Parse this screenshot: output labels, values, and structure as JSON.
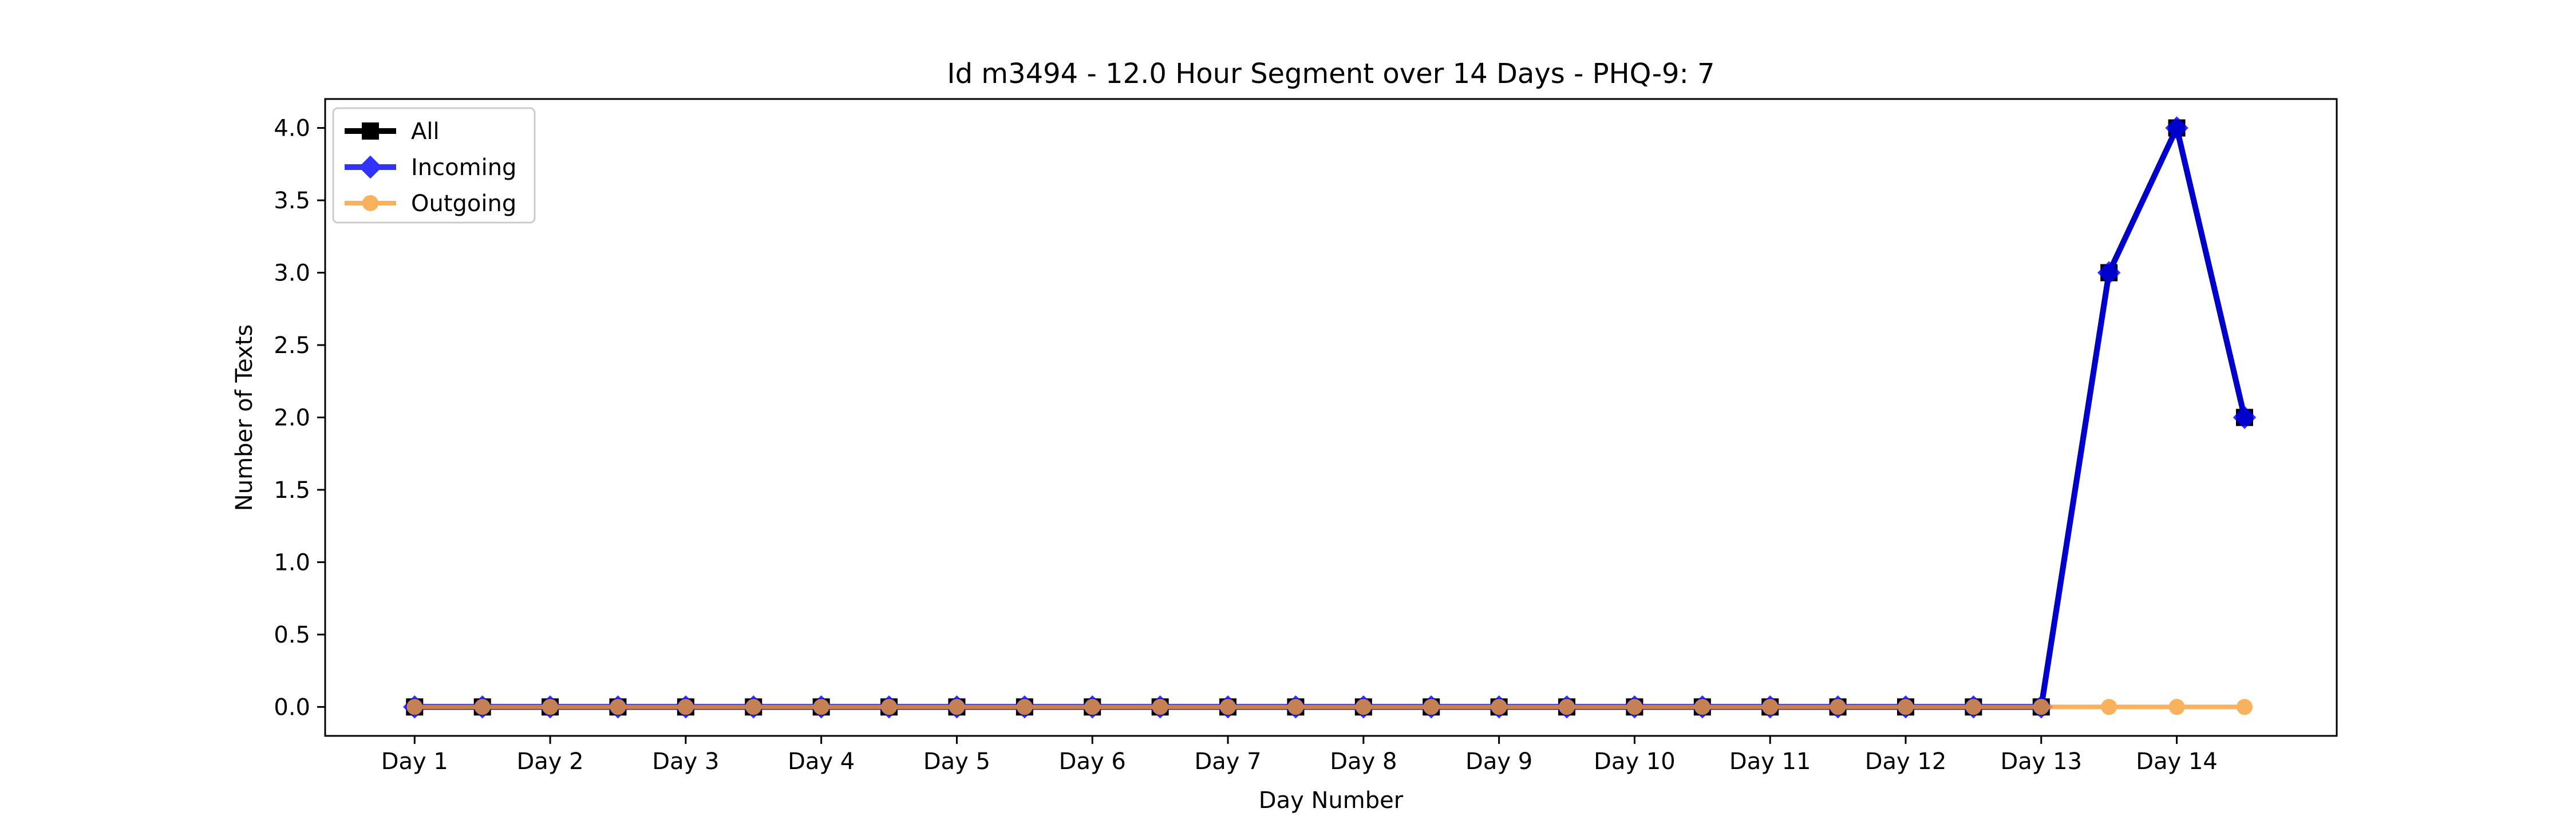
{
  "chart_data": {
    "type": "line",
    "title": "Id m3494 - 12.0 Hour Segment over 14 Days - PHQ-9: 7",
    "xlabel": "Day Number",
    "ylabel": "Number of Texts",
    "x": [
      1,
      1.5,
      2,
      2.5,
      3,
      3.5,
      4,
      4.5,
      5,
      5.5,
      6,
      6.5,
      7,
      7.5,
      8,
      8.5,
      9,
      9.5,
      10,
      10.5,
      11,
      11.5,
      12,
      12.5,
      13,
      13.5,
      14,
      14.5
    ],
    "xticks": [
      1,
      2,
      3,
      4,
      5,
      6,
      7,
      8,
      9,
      10,
      11,
      12,
      13,
      14
    ],
    "xtick_labels": [
      "Day 1",
      "Day 2",
      "Day 3",
      "Day 4",
      "Day 5",
      "Day 6",
      "Day 7",
      "Day 8",
      "Day 9",
      "Day 10",
      "Day 11",
      "Day 12",
      "Day 13",
      "Day 14"
    ],
    "xlim": [
      0.34,
      15.18
    ],
    "yticks": [
      0.0,
      0.5,
      1.0,
      1.5,
      2.0,
      2.5,
      3.0,
      3.5,
      4.0
    ],
    "ytick_labels": [
      "0.0",
      "0.5",
      "1.0",
      "1.5",
      "2.0",
      "2.5",
      "3.0",
      "3.5",
      "4.0"
    ],
    "ylim": [
      -0.2,
      4.2
    ],
    "grid": false,
    "legend_position": "upper-left",
    "series": [
      {
        "name": "All",
        "color": "#000000",
        "marker": "square",
        "values": [
          0,
          0,
          0,
          0,
          0,
          0,
          0,
          0,
          0,
          0,
          0,
          0,
          0,
          0,
          0,
          0,
          0,
          0,
          0,
          0,
          0,
          0,
          0,
          0,
          0,
          3,
          4,
          2
        ]
      },
      {
        "name": "Incoming",
        "color": "#0000ff",
        "marker": "diamond",
        "values": [
          0,
          0,
          0,
          0,
          0,
          0,
          0,
          0,
          0,
          0,
          0,
          0,
          0,
          0,
          0,
          0,
          0,
          0,
          0,
          0,
          0,
          0,
          0,
          0,
          0,
          3,
          4,
          2
        ]
      },
      {
        "name": "Outgoing",
        "color": "#f7a035",
        "marker": "circle",
        "values": [
          0,
          0,
          0,
          0,
          0,
          0,
          0,
          0,
          0,
          0,
          0,
          0,
          0,
          0,
          0,
          0,
          0,
          0,
          0,
          0,
          0,
          0,
          0,
          0,
          0,
          0,
          0,
          0
        ]
      }
    ]
  }
}
